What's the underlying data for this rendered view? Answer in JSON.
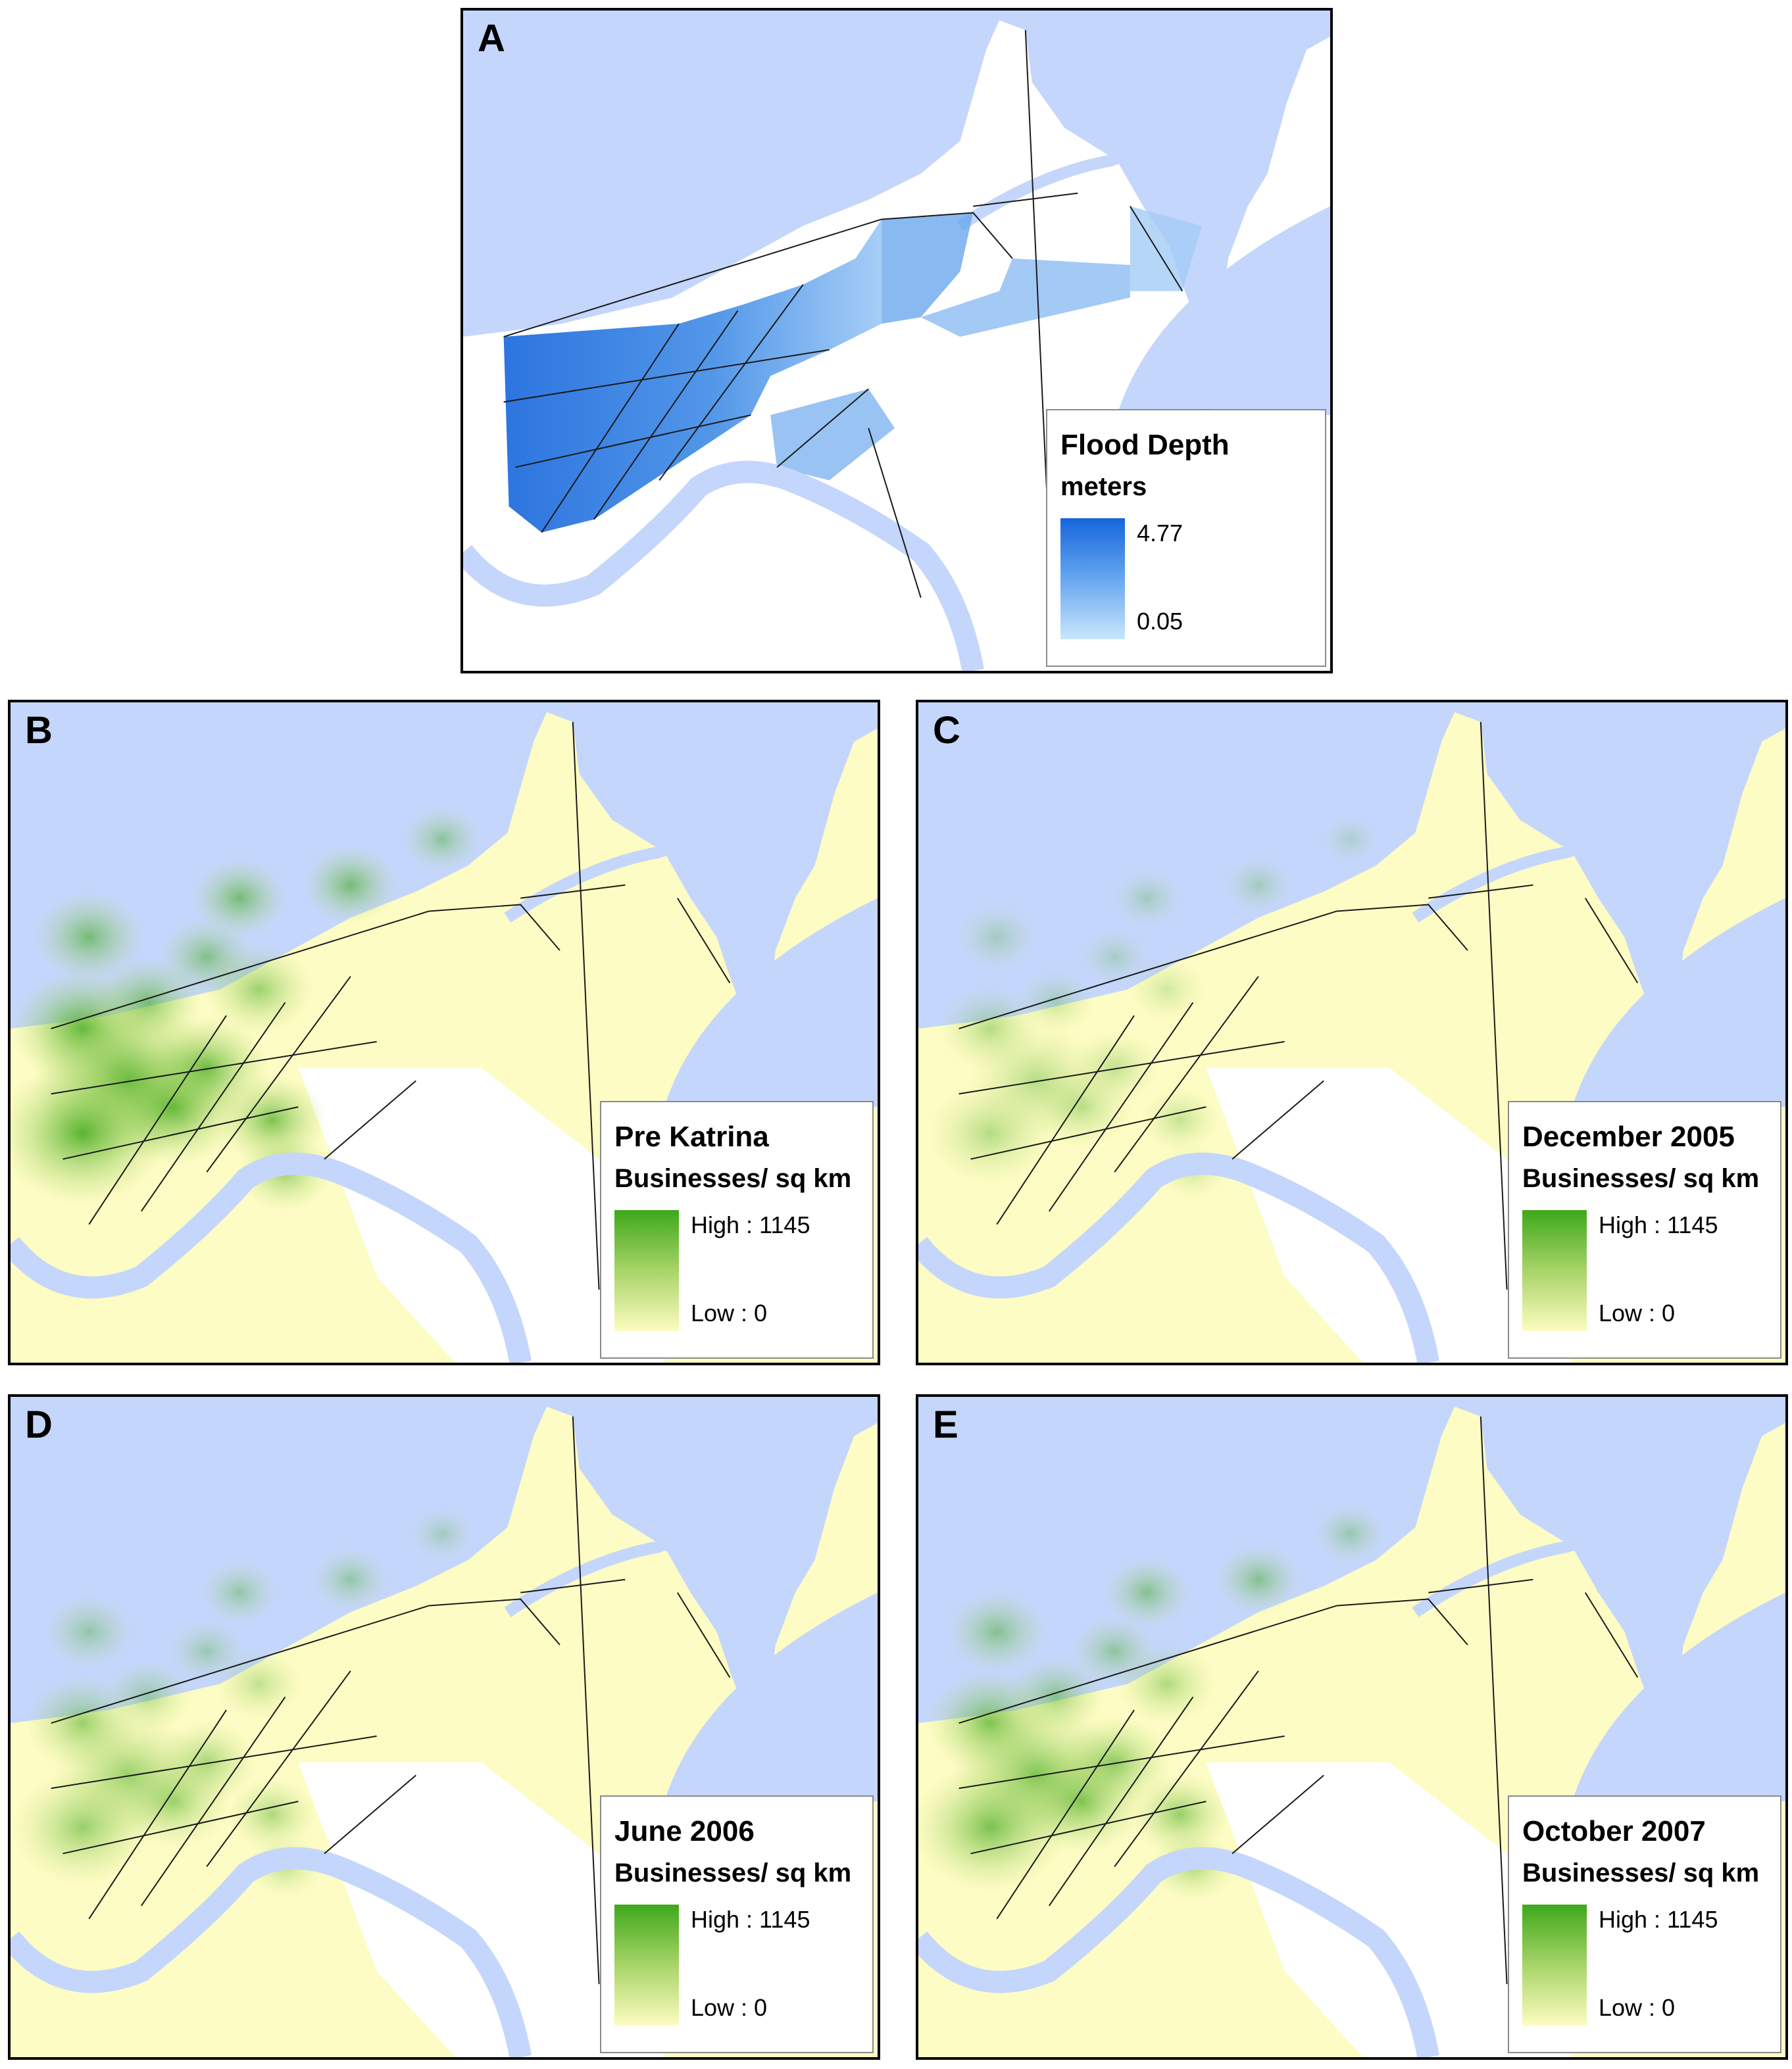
{
  "panels": [
    {
      "letter": "A",
      "legend_title": "Flood Depth",
      "legend_subtitle": "meters",
      "legend_high": "4.77",
      "legend_low": "0.05",
      "ramp_high_color": "#1565dc",
      "ramp_low_color": "#c8e6fc"
    },
    {
      "letter": "B",
      "legend_title": "Pre Katrina",
      "legend_subtitle": "Businesses/ sq km",
      "legend_high": "High : 1145",
      "legend_low": "Low : 0",
      "ramp_high_color": "#3ea81a",
      "ramp_low_color": "#fdfcc0",
      "density_level": 1.0
    },
    {
      "letter": "C",
      "legend_title": "December 2005",
      "legend_subtitle": "Businesses/ sq km",
      "legend_high": "High : 1145",
      "legend_low": "Low : 0",
      "ramp_high_color": "#3ea81a",
      "ramp_low_color": "#fdfcc0",
      "density_level": 0.45
    },
    {
      "letter": "D",
      "legend_title": "June 2006",
      "legend_subtitle": "Businesses/ sq km",
      "legend_high": "High : 1145",
      "legend_low": "Low : 0",
      "ramp_high_color": "#3ea81a",
      "ramp_low_color": "#fdfcc0",
      "density_level": 0.62
    },
    {
      "letter": "E",
      "legend_title": "October 2007",
      "legend_subtitle": "Businesses/ sq km",
      "legend_high": "High : 1145",
      "legend_low": "Low : 0",
      "ramp_high_color": "#3ea81a",
      "ramp_low_color": "#fdfcc0",
      "density_level": 0.8
    }
  ],
  "colors": {
    "water": "#c4d6fb",
    "land_flood_map": "#ffffff",
    "land_business_map": "#fdfcc4",
    "flood_deep": "#1565dc",
    "flood_shallow": "#a8d0f8",
    "district_lines": "#1a1a1a"
  }
}
